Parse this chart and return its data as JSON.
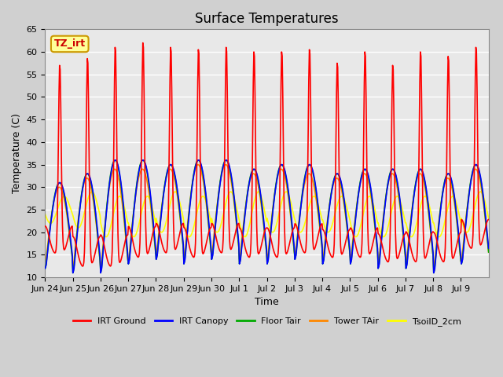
{
  "title": "Surface Temperatures",
  "xlabel": "Time",
  "ylabel": "Temperature (C)",
  "ylim": [
    10,
    65
  ],
  "yticks": [
    10,
    15,
    20,
    25,
    30,
    35,
    40,
    45,
    50,
    55,
    60,
    65
  ],
  "xtick_labels": [
    "Jun 24",
    "Jun 25",
    "Jun 26",
    "Jun 27",
    "Jun 28",
    "Jun 29",
    "Jun 30",
    "Jul 1",
    "Jul 2",
    "Jul 3",
    "Jul 4",
    "Jul 5",
    "Jul 6",
    "Jul 7",
    "Jul 8",
    "Jul 9"
  ],
  "annotation_text": "TZ_irt",
  "annotation_bg": "#ffff99",
  "annotation_border": "#cc9900",
  "colors": {
    "IRT Ground": "#ff0000",
    "IRT Canopy": "#0000ff",
    "Floor Tair": "#00aa00",
    "Tower TAir": "#ff8800",
    "TsoilD_2cm": "#ffff00"
  },
  "legend_labels": [
    "IRT Ground",
    "IRT Canopy",
    "Floor Tair",
    "Tower TAir",
    "TsoilD_2cm"
  ],
  "background_color": "#e8e8e8",
  "grid_color": "#ffffff",
  "n_days": 16,
  "irt_ground_peaks": [
    57,
    58.5,
    61,
    62,
    61,
    60.5,
    61,
    60,
    60,
    60.5,
    57.5,
    60,
    57,
    60,
    59,
    61
  ],
  "irt_ground_mins": [
    15,
    12,
    12,
    14,
    15,
    14,
    15,
    14,
    14,
    15,
    14,
    14,
    13,
    13,
    13,
    16
  ],
  "canopy_peaks": [
    31,
    33,
    36,
    36,
    35,
    36,
    36,
    34,
    35,
    35,
    33,
    34,
    34,
    34,
    33,
    35
  ],
  "canopy_mins": [
    12,
    11,
    11,
    13,
    14,
    13,
    14,
    13,
    13,
    14,
    13,
    13,
    12,
    12,
    11,
    13
  ],
  "floor_peaks": [
    31,
    33,
    36,
    36,
    35,
    36,
    36,
    34,
    35,
    35,
    33,
    34,
    34,
    34,
    33,
    35
  ],
  "floor_mins": [
    12,
    11,
    11,
    13,
    14,
    13,
    14,
    13,
    13,
    14,
    13,
    13,
    12,
    12,
    11,
    13
  ],
  "tower_peaks": [
    30,
    32,
    34,
    34,
    34,
    35,
    35,
    33,
    34,
    33,
    32,
    33,
    33,
    33,
    32,
    34
  ],
  "tower_mins": [
    13,
    12,
    12,
    14,
    15,
    14,
    15,
    14,
    14,
    15,
    14,
    14,
    13,
    13,
    12,
    14
  ],
  "soil_peaks": [
    28,
    29,
    28,
    28,
    29,
    28,
    29,
    29,
    29,
    28,
    28,
    28,
    28,
    28,
    28,
    29
  ],
  "soil_mins": [
    22,
    21,
    19,
    19,
    20,
    19,
    20,
    19,
    20,
    20,
    20,
    19,
    19,
    19,
    19,
    20
  ]
}
